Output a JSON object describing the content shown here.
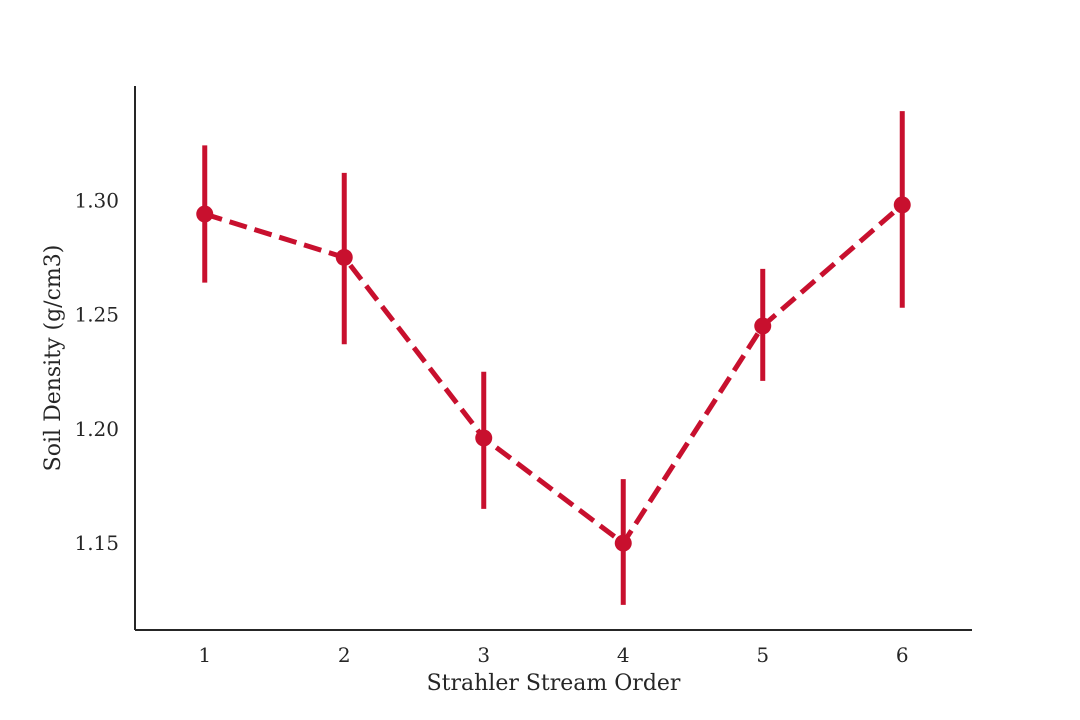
{
  "chart_data": {
    "type": "line",
    "title": "",
    "xlabel": "Strahler Stream Order",
    "ylabel": "Soil Density (g/cm3)",
    "x": [
      1,
      2,
      3,
      4,
      5,
      6
    ],
    "x_tick_labels": [
      "1",
      "2",
      "3",
      "4",
      "5",
      "6"
    ],
    "xlim": [
      0.5,
      6.5
    ],
    "y_ticks": [
      1.15,
      1.2,
      1.25,
      1.3
    ],
    "y_tick_labels": [
      "1.15",
      "1.20",
      "1.25",
      "1.30"
    ],
    "ylim": [
      1.112,
      1.35
    ],
    "grid": false,
    "legend": "none",
    "series": [
      {
        "values": [
          1.294,
          1.275,
          1.196,
          1.15,
          1.245,
          1.298
        ],
        "error_low": [
          1.264,
          1.237,
          1.165,
          1.123,
          1.221,
          1.253
        ],
        "error_high": [
          1.324,
          1.312,
          1.225,
          1.178,
          1.27,
          1.339
        ],
        "color": "#c8102e",
        "line_style": "dashed",
        "marker": "circle"
      }
    ]
  }
}
